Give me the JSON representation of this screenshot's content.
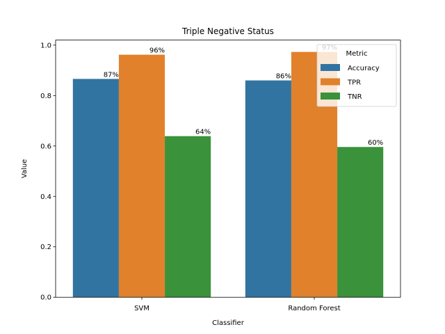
{
  "chart_data": {
    "type": "bar",
    "title": "Triple Negative Status",
    "xlabel": "Classifier",
    "ylabel": "Value",
    "categories": [
      "SVM",
      "Random Forest"
    ],
    "series": [
      {
        "name": "Accuracy",
        "color": "#3274a1",
        "values": [
          0.866,
          0.86
        ],
        "labels": [
          "87%",
          "86%"
        ]
      },
      {
        "name": "TPR",
        "color": "#e1812c",
        "values": [
          0.962,
          0.973
        ],
        "labels": [
          "96%",
          "97%"
        ]
      },
      {
        "name": "TNR",
        "color": "#3a923a",
        "values": [
          0.639,
          0.596
        ],
        "labels": [
          "64%",
          "60%"
        ]
      }
    ],
    "ylim": [
      0,
      1.02
    ],
    "yticks": [
      "0.0",
      "0.2",
      "0.4",
      "0.6",
      "0.8",
      "1.0"
    ],
    "grid": false,
    "legend": {
      "title": "Metric",
      "position": "top-right"
    }
  }
}
